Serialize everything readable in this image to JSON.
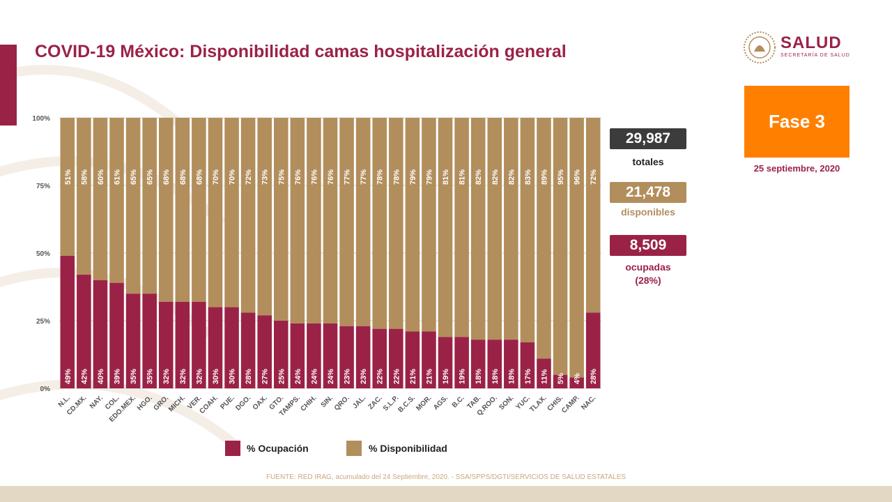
{
  "title": "COVID-19 México: Disponibilidad camas hospitalización general",
  "logo": {
    "name": "SALUD",
    "sub": "SECRETARÍA DE SALUD"
  },
  "phase": "Fase 3",
  "date": "25 septiembre, 2020",
  "stats": {
    "total_value": "29,987",
    "total_label": "totales",
    "available_value": "21,478",
    "available_label": "disponibles",
    "occupied_value": "8,509",
    "occupied_label": "ocupadas",
    "occupied_pct": "(28%)"
  },
  "legend": {
    "occupied": "% Ocupación",
    "available": "% Disponibilidad"
  },
  "source": "FUENTE: RED IRAG, acumulado del 24 Septiembre, 2020. -  SSA/SPPS/DGTI/SERVICIOS DE SALUD ESTATALES",
  "colors": {
    "occupied": "#9b2247",
    "available": "#b28e5c",
    "total_box": "#3c3c3c",
    "phase": "#ff8000"
  },
  "chart_data": {
    "type": "bar",
    "stacked": true,
    "categories": [
      "N.L.",
      "CD.MX.",
      "NAY.",
      "COL.",
      "EDO.MEX.",
      "HGO.",
      "GRO.",
      "MICH.",
      "VER.",
      "COAH.",
      "PUE.",
      "DGO.",
      "OAX.",
      "GTO.",
      "TAMPS.",
      "CHIH.",
      "SIN.",
      "QRO.",
      "JAL.",
      "ZAC.",
      "S.L.P.",
      "B.C.S.",
      "MOR.",
      "AGS.",
      "B.C.",
      "TAB.",
      "Q.ROO.",
      "SON.",
      "YUC.",
      "TLAX.",
      "CHIS.",
      "CAMP.",
      "NAC."
    ],
    "series": [
      {
        "name": "% Ocupación",
        "values": [
          49,
          42,
          40,
          39,
          35,
          35,
          32,
          32,
          32,
          30,
          30,
          28,
          27,
          25,
          24,
          24,
          24,
          23,
          23,
          22,
          22,
          21,
          21,
          19,
          19,
          18,
          18,
          18,
          17,
          11,
          5,
          4,
          28
        ]
      },
      {
        "name": "% Disponibilidad",
        "values": [
          51,
          58,
          60,
          61,
          65,
          65,
          68,
          68,
          68,
          70,
          70,
          72,
          73,
          75,
          76,
          76,
          76,
          77,
          77,
          78,
          78,
          79,
          79,
          81,
          81,
          82,
          82,
          82,
          83,
          89,
          95,
          96,
          72
        ]
      }
    ],
    "yticks": [
      "0%",
      "25%",
      "50%",
      "75%",
      "100%"
    ],
    "ylim": [
      0,
      100
    ],
    "grid": true
  }
}
